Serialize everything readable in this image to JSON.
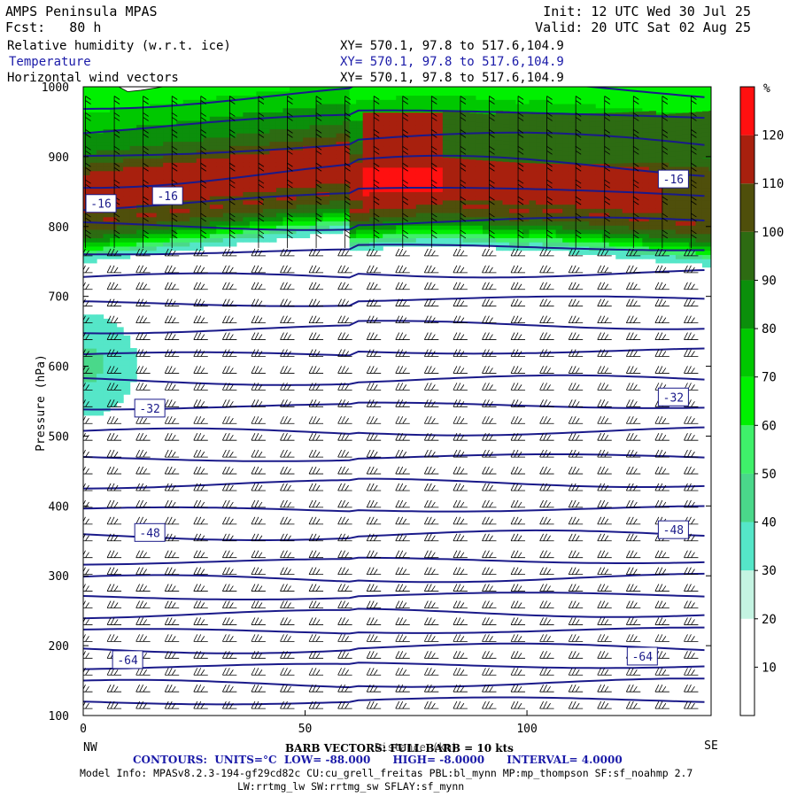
{
  "header": {
    "title": "AMPS Peninsula MPAS",
    "fcst_label": "Fcst:",
    "fcst_value": "80 h",
    "init": "Init: 12 UTC Wed 30 Jul 25",
    "valid": "Valid: 20 UTC Sat 02 Aug 25",
    "fields": [
      {
        "name": "Relative humidity (w.r.t. ice)",
        "xy": "XY= 570.1, 97.8 to 517.6,104.9"
      },
      {
        "name": "Temperature",
        "xy": "XY= 570.1, 97.8 to 517.6,104.9"
      },
      {
        "name": "Horizontal wind vectors",
        "xy": "XY= 570.1, 97.8 to 517.6,104.9"
      }
    ]
  },
  "footer": {
    "barb_text": "BARB VECTORS: FULL BARB = 10 kts",
    "contours_label": "CONTOURS:",
    "units": "UNITS=°C",
    "low": "LOW= -88.000",
    "high": "HIGH= -8.0000",
    "interval": "INTERVAL= 4.0000",
    "model_info": "Model Info: MPASv8.2.3-194-gf29cd82c CU:cu_grell_freitas PBL:bl_mynn MP:mp_thompson SF:sf_noahmp 2.7",
    "model_info2": "LW:rrtmg_lw SW:rrtmg_sw SFLAY:sf_mynn"
  },
  "chart_data": {
    "type": "heatmap",
    "title": "Relative humidity (w.r.t. ice)",
    "ylabel": "Pressure (hPa)",
    "xlabel": "Distance (km)",
    "x_ticks": [
      0,
      50,
      100
    ],
    "y_ticks": [
      100,
      200,
      300,
      400,
      500,
      600,
      700,
      800,
      900,
      1000
    ],
    "xlim": [
      0,
      141.5
    ],
    "ylim": [
      1000,
      100
    ],
    "x_end_labels": {
      "left": "NW",
      "right": "SE"
    },
    "colorbar": {
      "unit": "%",
      "levels": [
        10,
        20,
        30,
        40,
        50,
        60,
        70,
        80,
        90,
        100,
        110,
        120
      ],
      "colors": [
        "#ffffff",
        "#ffffff",
        "#c4f4e2",
        "#55e6c8",
        "#4ad88a",
        "#3ff06a",
        "#00f000",
        "#00c800",
        "#0b8f0b",
        "#2d6b12",
        "#4f4f0b",
        "#a8200e",
        "#ff1010"
      ]
    },
    "temperature_contours": {
      "units": "°C",
      "levels": [
        -88,
        -84,
        -80,
        -76,
        -72,
        -68,
        -64,
        -60,
        -56,
        -52,
        -48,
        -44,
        -40,
        -36,
        -32,
        -28,
        -24,
        -20,
        -16,
        -12,
        -8
      ],
      "labels": [
        {
          "text": "-64",
          "x": 10,
          "p": 180
        },
        {
          "text": "-64",
          "x": 126,
          "p": 185
        },
        {
          "text": "-48",
          "x": 15,
          "p": 362
        },
        {
          "text": "-48",
          "x": 133,
          "p": 366
        },
        {
          "text": "-32",
          "x": 15,
          "p": 540
        },
        {
          "text": "-32",
          "x": 133,
          "p": 556
        },
        {
          "text": "-16",
          "x": 4,
          "p": 833
        },
        {
          "text": "-16",
          "x": 19,
          "p": 844
        },
        {
          "text": "-16",
          "x": 133,
          "p": 868
        }
      ]
    }
  }
}
